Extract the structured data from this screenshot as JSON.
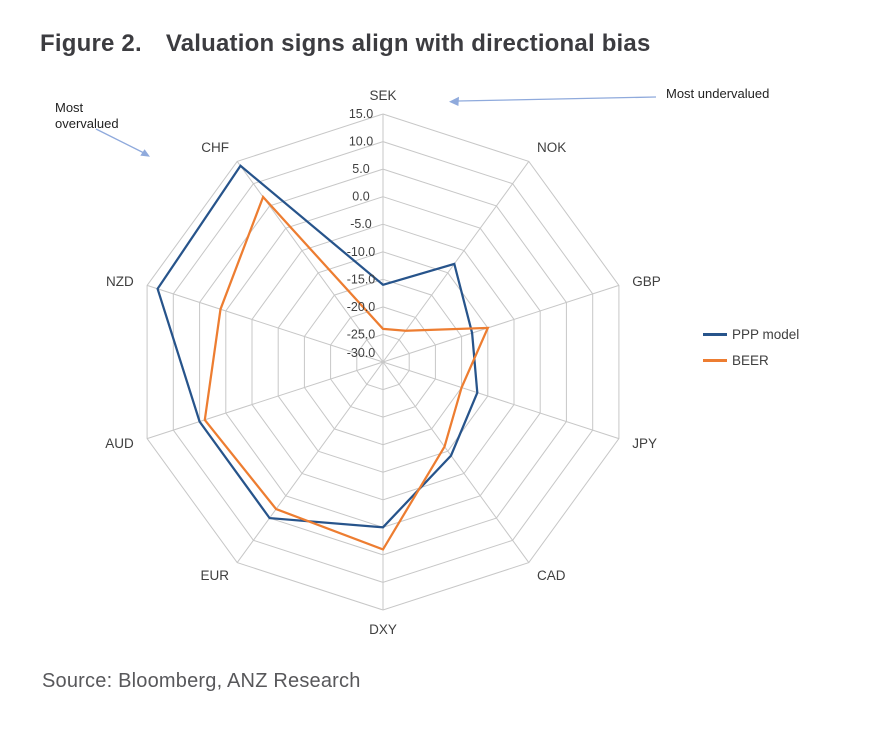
{
  "figure": {
    "title_prefix": "Figure 2.",
    "title_text": "Valuation signs align with directional bias",
    "source": "Source: Bloomberg, ANZ Research"
  },
  "annotations": {
    "overvalued": "Most overvalued",
    "undervalued": "Most undervalued",
    "arrow_color": "#8faadc"
  },
  "chart_data": {
    "type": "radar",
    "title": "Valuation signs align with directional bias",
    "categories": [
      "SEK",
      "NOK",
      "GBP",
      "JPY",
      "CAD",
      "DXY",
      "EUR",
      "AUD",
      "NZD",
      "CHF"
    ],
    "series": [
      {
        "name": "PPP model",
        "color": "#27548B",
        "values": [
          -16,
          -8,
          -13,
          -12,
          -9,
          0,
          5,
          5,
          13,
          14
        ]
      },
      {
        "name": "BEER",
        "color": "#ED7D31",
        "values": [
          -24,
          -23,
          -10,
          -15,
          -11,
          4,
          3,
          4,
          1,
          7
        ]
      }
    ],
    "rmin": -30,
    "rmax": 15,
    "tick_step": 5,
    "ticks": [
      {
        "value": 15,
        "label": "15.0"
      },
      {
        "value": 10,
        "label": "10.0"
      },
      {
        "value": 5,
        "label": "5.0"
      },
      {
        "value": 0,
        "label": "0.0"
      },
      {
        "value": -5,
        "label": "-5.0"
      },
      {
        "value": -10,
        "label": "-10.0"
      },
      {
        "value": -15,
        "label": "-15.0"
      },
      {
        "value": -20,
        "label": "-20.0"
      },
      {
        "value": -25,
        "label": "-25.0"
      },
      {
        "value": -30,
        "label": "-30.0"
      }
    ],
    "grid": true,
    "grid_color": "#c7c7c7",
    "legend_position": "right",
    "label_color": "#404040"
  }
}
